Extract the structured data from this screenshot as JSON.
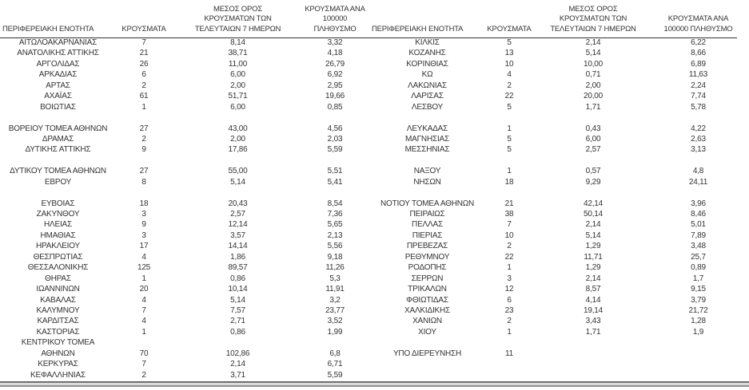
{
  "headers": {
    "region": "ΠΕΡΙΦΕΡΕΙΑΚΗ ΕΝΟΤΗΤΑ",
    "cases": "ΚΡΟΥΣΜΑΤΑ",
    "avg7": "ΜΕΣΟΣ ΟΡΟΣ\nΚΡΟΥΣΜΑΤΩΝ ΤΩΝ\nΤΕΛΕΥΤΑΙΩΝ 7 ΗΜΕΡΩΝ",
    "per100k": "ΚΡΟΥΣΜΑΤΑ ΑΝΑ\n100000 ΠΛΗΘΥΣΜΟ"
  },
  "colors": {
    "text": "#333333",
    "header_rule": "#333333",
    "bottom_bar_dark": "#6f6f6f",
    "bottom_bar_light": "#dcdcdc",
    "bottom_bar_mid": "#8f8f8f",
    "background": "#ffffff"
  },
  "left_table": {
    "rows": [
      [
        "ΑΙΤΩΛΟΑΚΑΡΝΑΝΙΑΣ",
        "7",
        "8,14",
        "3,32"
      ],
      [
        "ΑΝΑΤΟΛΙΚΗΣ ΑΤΤΙΚΗΣ",
        "21",
        "38,71",
        "4,18"
      ],
      [
        "ΑΡΓΟΛΙΔΑΣ",
        "26",
        "11,00",
        "26,79"
      ],
      [
        "ΑΡΚΑΔΙΑΣ",
        "6",
        "6,00",
        "6,92"
      ],
      [
        "ΑΡΤΑΣ",
        "2",
        "2,00",
        "2,95"
      ],
      [
        "ΑΧΑΪΑΣ",
        "61",
        "51,71",
        "19,66"
      ],
      [
        "ΒΟΙΩΤΙΑΣ",
        "1",
        "6,00",
        "0,85"
      ],
      [
        "",
        "",
        "",
        ""
      ],
      [
        "ΒΟΡΕΙΟΥ ΤΟΜΕΑ ΑΘΗΝΩΝ",
        "27",
        "43,00",
        "4,56"
      ],
      [
        "ΔΡΑΜΑΣ",
        "2",
        "2,00",
        "2,03"
      ],
      [
        "ΔΥΤΙΚΗΣ ΑΤΤΙΚΗΣ",
        "9",
        "17,86",
        "5,59"
      ],
      [
        "",
        "",
        "",
        ""
      ],
      [
        "ΔΥΤΙΚΟΥ ΤΟΜΕΑ ΑΘΗΝΩΝ",
        "27",
        "55,00",
        "5,51"
      ],
      [
        "ΕΒΡΟΥ",
        "8",
        "5,14",
        "5,41"
      ],
      [
        "",
        "",
        "",
        ""
      ],
      [
        "ΕΥΒΟΙΑΣ",
        "18",
        "20,43",
        "8,54"
      ],
      [
        "ΖΑΚΥΝΘΟΥ",
        "3",
        "2,57",
        "7,36"
      ],
      [
        "ΗΛΕΙΑΣ",
        "9",
        "12,14",
        "5,65"
      ],
      [
        "ΗΜΑΘΙΑΣ",
        "3",
        "3,57",
        "2,13"
      ],
      [
        "ΗΡΑΚΛΕΙΟΥ",
        "17",
        "14,14",
        "5,56"
      ],
      [
        "ΘΕΣΠΡΩΤΙΑΣ",
        "4",
        "1,86",
        "9,18"
      ],
      [
        "ΘΕΣΣΑΛΟΝΙΚΗΣ",
        "125",
        "89,57",
        "11,26"
      ],
      [
        "ΘΗΡΑΣ",
        "1",
        "0,86",
        "5,3"
      ],
      [
        "ΙΩΑΝΝΙΝΩΝ",
        "20",
        "10,14",
        "11,91"
      ],
      [
        "ΚΑΒΑΛΑΣ",
        "4",
        "5,14",
        "3,2"
      ],
      [
        "ΚΑΛΥΜΝΟΥ",
        "7",
        "7,57",
        "23,77"
      ],
      [
        "ΚΑΡΔΙΤΣΑΣ",
        "4",
        "2,71",
        "3,52"
      ],
      [
        "ΚΑΣΤΟΡΙΑΣ",
        "1",
        "0,86",
        "1,99"
      ],
      [
        "ΚΕΝΤΡΙΚΟΥ ΤΟΜΕΑ",
        "",
        "",
        ""
      ],
      [
        "ΑΘΗΝΩΝ",
        "70",
        "102,86",
        "6,8"
      ],
      [
        "ΚΕΡΚΥΡΑΣ",
        "7",
        "2,14",
        "6,71"
      ],
      [
        "ΚΕΦΑΛΛΗΝΙΑΣ",
        "2",
        "3,71",
        "5,59"
      ]
    ]
  },
  "right_table": {
    "rows": [
      [
        "ΚΙΛΚΙΣ",
        "5",
        "2,14",
        "6,22"
      ],
      [
        "ΚΟΖΑΝΗΣ",
        "13",
        "5,14",
        "8,66"
      ],
      [
        "ΚΟΡΙΝΘΙΑΣ",
        "10",
        "10,00",
        "6,89"
      ],
      [
        "ΚΩ",
        "4",
        "0,71",
        "11,63"
      ],
      [
        "ΛΑΚΩΝΙΑΣ",
        "2",
        "2,00",
        "2,24"
      ],
      [
        "ΛΑΡΙΣΑΣ",
        "22",
        "20,00",
        "7,74"
      ],
      [
        "ΛΕΣΒΟΥ",
        "5",
        "1,71",
        "5,78"
      ],
      [
        "",
        "",
        "",
        ""
      ],
      [
        "ΛΕΥΚΑΔΑΣ",
        "1",
        "0,43",
        "4,22"
      ],
      [
        "ΜΑΓΝΗΣΙΑΣ",
        "5",
        "6,00",
        "2,63"
      ],
      [
        "ΜΕΣΣΗΝΙΑΣ",
        "5",
        "2,57",
        "3,13"
      ],
      [
        "",
        "",
        "",
        ""
      ],
      [
        "ΝΑΞΟΥ",
        "1",
        "0,57",
        "4,8"
      ],
      [
        "ΝΗΣΩΝ",
        "18",
        "9,29",
        "24,11"
      ],
      [
        "",
        "",
        "",
        ""
      ],
      [
        "ΝΟΤΙΟΥ ΤΟΜΕΑ ΑΘΗΝΩΝ",
        "21",
        "42,14",
        "3,96"
      ],
      [
        "ΠΕΙΡΑΙΩΣ",
        "38",
        "50,14",
        "8,46"
      ],
      [
        "ΠΕΛΛΑΣ",
        "7",
        "2,14",
        "5,01"
      ],
      [
        "ΠΙΕΡΙΑΣ",
        "10",
        "5,14",
        "7,89"
      ],
      [
        "ΠΡΕΒΕΖΑΣ",
        "2",
        "1,29",
        "3,48"
      ],
      [
        "ΡΕΘΥΜΝΟΥ",
        "22",
        "11,71",
        "25,7"
      ],
      [
        "ΡΟΔΟΠΗΣ",
        "1",
        "1,29",
        "0,89"
      ],
      [
        "ΣΕΡΡΩΝ",
        "3",
        "2,14",
        "1,7"
      ],
      [
        "ΤΡΙΚΑΛΩΝ",
        "12",
        "8,57",
        "9,15"
      ],
      [
        "ΦΘΙΩΤΙΔΑΣ",
        "6",
        "4,14",
        "3,79"
      ],
      [
        "ΧΑΛΚΙΔΙΚΗΣ",
        "23",
        "19,14",
        "21,72"
      ],
      [
        "ΧΑΝΙΩΝ",
        "2",
        "3,43",
        "1,28"
      ],
      [
        "ΧΙΟΥ",
        "1",
        "1,71",
        "1,9"
      ],
      [
        "",
        "",
        "",
        ""
      ],
      [
        "ΥΠΟ ΔΙΕΡΕΥΝΗΣΗ",
        "11",
        "",
        ""
      ],
      [
        "",
        "",
        "",
        ""
      ],
      [
        "",
        "",
        "",
        ""
      ]
    ]
  }
}
